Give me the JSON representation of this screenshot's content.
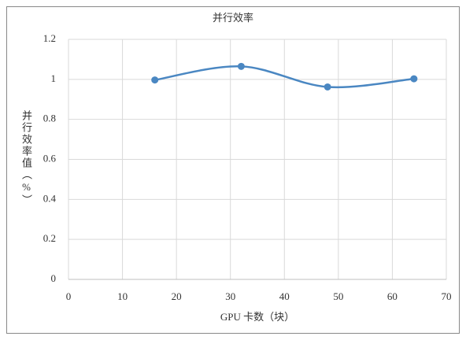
{
  "chart_data": {
    "type": "scatter",
    "title": "并行效率",
    "x_label": "GPU 卡数（块）",
    "y_label": "并行效率值（%）",
    "x": [
      16,
      32,
      48,
      64
    ],
    "series": [
      {
        "name": "并行效率",
        "color": "#4a87c2",
        "values": [
          0.997,
          1.065,
          0.962,
          1.003
        ]
      }
    ],
    "smooth": true,
    "xlim": [
      0,
      70
    ],
    "xticks": [
      0,
      10,
      20,
      30,
      40,
      50,
      60,
      70
    ],
    "ylim": [
      0,
      1.2
    ],
    "yticks": [
      0,
      0.2,
      0.4,
      0.6,
      0.8,
      1,
      1.2
    ],
    "grid": true
  }
}
